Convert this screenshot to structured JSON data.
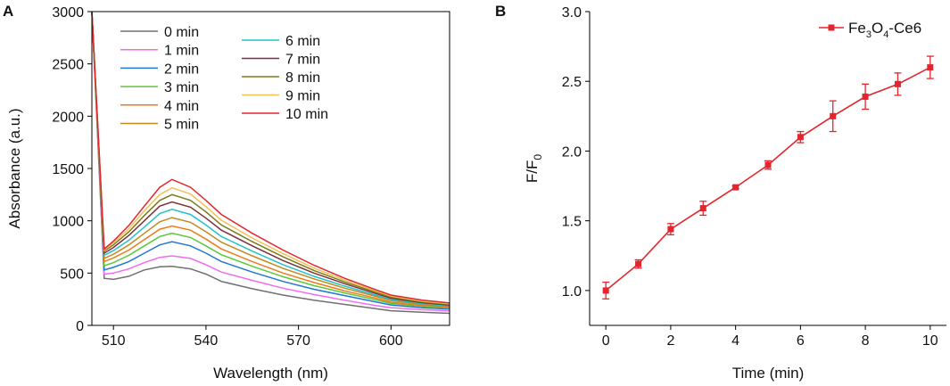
{
  "chart_data": [
    {
      "panel": "A",
      "type": "line",
      "xlabel": "Wavelength (nm)",
      "ylabel": "Absorbance (a.u.)",
      "xlim": [
        503,
        619
      ],
      "ylim": [
        0,
        3000
      ],
      "xticks": [
        510,
        540,
        570,
        600
      ],
      "yticks": [
        0,
        500,
        1000,
        1500,
        2000,
        2500,
        3000
      ],
      "x": [
        503,
        507,
        510,
        515,
        520,
        525,
        529,
        535,
        540,
        545,
        555,
        565,
        575,
        585,
        595,
        600,
        610,
        619
      ],
      "series": [
        {
          "name": "0 min",
          "color": "#707070",
          "values": [
            3000,
            450,
            440,
            470,
            530,
            560,
            565,
            540,
            490,
            420,
            350,
            290,
            240,
            200,
            160,
            140,
            125,
            115
          ]
        },
        {
          "name": "1 min",
          "color": "#f06bf2",
          "values": [
            3000,
            490,
            500,
            540,
            600,
            650,
            665,
            640,
            580,
            510,
            430,
            355,
            295,
            240,
            190,
            170,
            150,
            138
          ]
        },
        {
          "name": "2 min",
          "color": "#1f77d4",
          "values": [
            3000,
            530,
            555,
            610,
            690,
            770,
            800,
            760,
            690,
            610,
            510,
            420,
            345,
            285,
            225,
            195,
            170,
            155
          ]
        },
        {
          "name": "3 min",
          "color": "#5ac83a",
          "values": [
            3000,
            570,
            600,
            670,
            760,
            850,
            880,
            840,
            760,
            675,
            565,
            465,
            380,
            310,
            245,
            210,
            182,
            165
          ]
        },
        {
          "name": "4 min",
          "color": "#ef7b19",
          "values": [
            3000,
            610,
            645,
            720,
            820,
            920,
            950,
            910,
            825,
            730,
            610,
            500,
            410,
            330,
            260,
            222,
            190,
            172
          ]
        },
        {
          "name": "5 min",
          "color": "#c08a1f",
          "values": [
            3000,
            640,
            680,
            770,
            880,
            990,
            1030,
            985,
            895,
            795,
            665,
            545,
            445,
            355,
            278,
            237,
            200,
            180
          ]
        },
        {
          "name": "6 min",
          "color": "#22c2c9",
          "values": [
            3000,
            670,
            715,
            815,
            940,
            1070,
            1110,
            1060,
            960,
            850,
            710,
            580,
            470,
            375,
            290,
            247,
            208,
            186
          ]
        },
        {
          "name": "7 min",
          "color": "#7c2f3d",
          "values": [
            3000,
            690,
            745,
            860,
            1000,
            1140,
            1180,
            1130,
            1025,
            910,
            760,
            620,
            500,
            398,
            305,
            260,
            217,
            194
          ]
        },
        {
          "name": "8 min",
          "color": "#7a7a1c",
          "values": [
            3000,
            710,
            770,
            895,
            1050,
            1195,
            1250,
            1195,
            1085,
            960,
            800,
            655,
            525,
            415,
            318,
            270,
            225,
            200
          ]
        },
        {
          "name": "9 min",
          "color": "#f5c052",
          "values": [
            3000,
            720,
            790,
            925,
            1095,
            1250,
            1315,
            1255,
            1135,
            1005,
            835,
            685,
            548,
            432,
            330,
            280,
            233,
            207
          ]
        },
        {
          "name": "10 min",
          "color": "#e3262d",
          "values": [
            3000,
            730,
            805,
            955,
            1140,
            1320,
            1395,
            1320,
            1195,
            1060,
            880,
            720,
            575,
            450,
            342,
            290,
            242,
            214
          ]
        }
      ]
    },
    {
      "panel": "B",
      "type": "line",
      "xlabel": "Time (min)",
      "ylabel_main": "F/F",
      "ylabel_sub": "0",
      "xlim": [
        -0.5,
        10.5
      ],
      "ylim": [
        0.75,
        3.0
      ],
      "xticks": [
        0,
        2,
        4,
        6,
        8,
        10
      ],
      "yticks": [
        "1.0",
        "1.5",
        "2.0",
        "2.5",
        "3.0"
      ],
      "color": "#e3262d",
      "legend": {
        "part1": "Fe",
        "sub1": "3",
        "part2": "O",
        "sub2": "4",
        "part3": "-Ce6",
        "position": "top-right"
      },
      "x": [
        0,
        1,
        2,
        3,
        4,
        5,
        6,
        7,
        8,
        9,
        10
      ],
      "values": [
        1.0,
        1.19,
        1.44,
        1.59,
        1.74,
        1.9,
        2.1,
        2.25,
        2.39,
        2.48,
        2.6
      ],
      "errors": [
        0.06,
        0.03,
        0.04,
        0.05,
        0.01,
        0.03,
        0.04,
        0.11,
        0.09,
        0.08,
        0.08
      ]
    }
  ],
  "panel_labels": {
    "a": "A",
    "b": "B"
  },
  "legend_suffix": " min"
}
